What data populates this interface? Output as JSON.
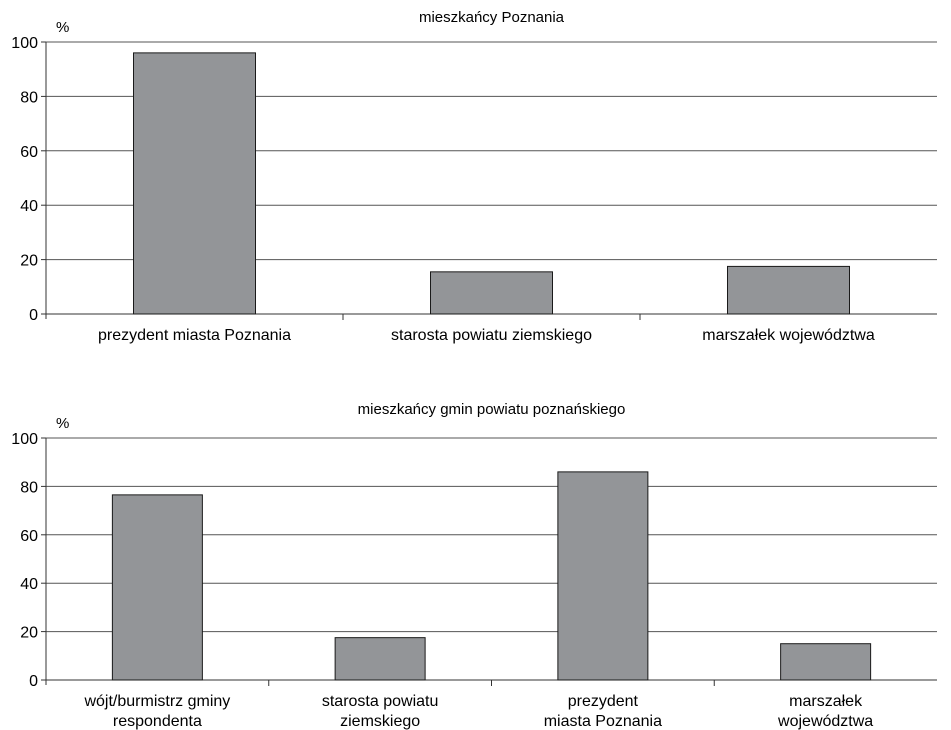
{
  "chart_data": [
    {
      "type": "bar",
      "title": "mieszkańcy Poznania",
      "ylabel": "%",
      "xlabel": "",
      "ylim": [
        0,
        100
      ],
      "yticks": [
        0,
        20,
        40,
        60,
        80,
        100
      ],
      "grid": true,
      "categories": [
        [
          "prezydent miasta Poznania"
        ],
        [
          "starosta powiatu ziemskiego"
        ],
        [
          "marszałek województwa"
        ]
      ],
      "values": [
        96,
        15.5,
        17.5
      ],
      "bar_color": "#939598"
    },
    {
      "type": "bar",
      "title": "mieszkańcy gmin powiatu poznańskiego",
      "ylabel": "%",
      "xlabel": "",
      "ylim": [
        0,
        100
      ],
      "yticks": [
        0,
        20,
        40,
        60,
        80,
        100
      ],
      "grid": true,
      "categories": [
        [
          "wójt/burmistrz gminy",
          "respondenta"
        ],
        [
          "starosta powiatu",
          "ziemskiego"
        ],
        [
          "prezydent",
          "miasta Poznania"
        ],
        [
          "marszałek",
          "województwa"
        ]
      ],
      "values": [
        76.5,
        17.5,
        86,
        15
      ],
      "bar_color": "#939598"
    }
  ]
}
